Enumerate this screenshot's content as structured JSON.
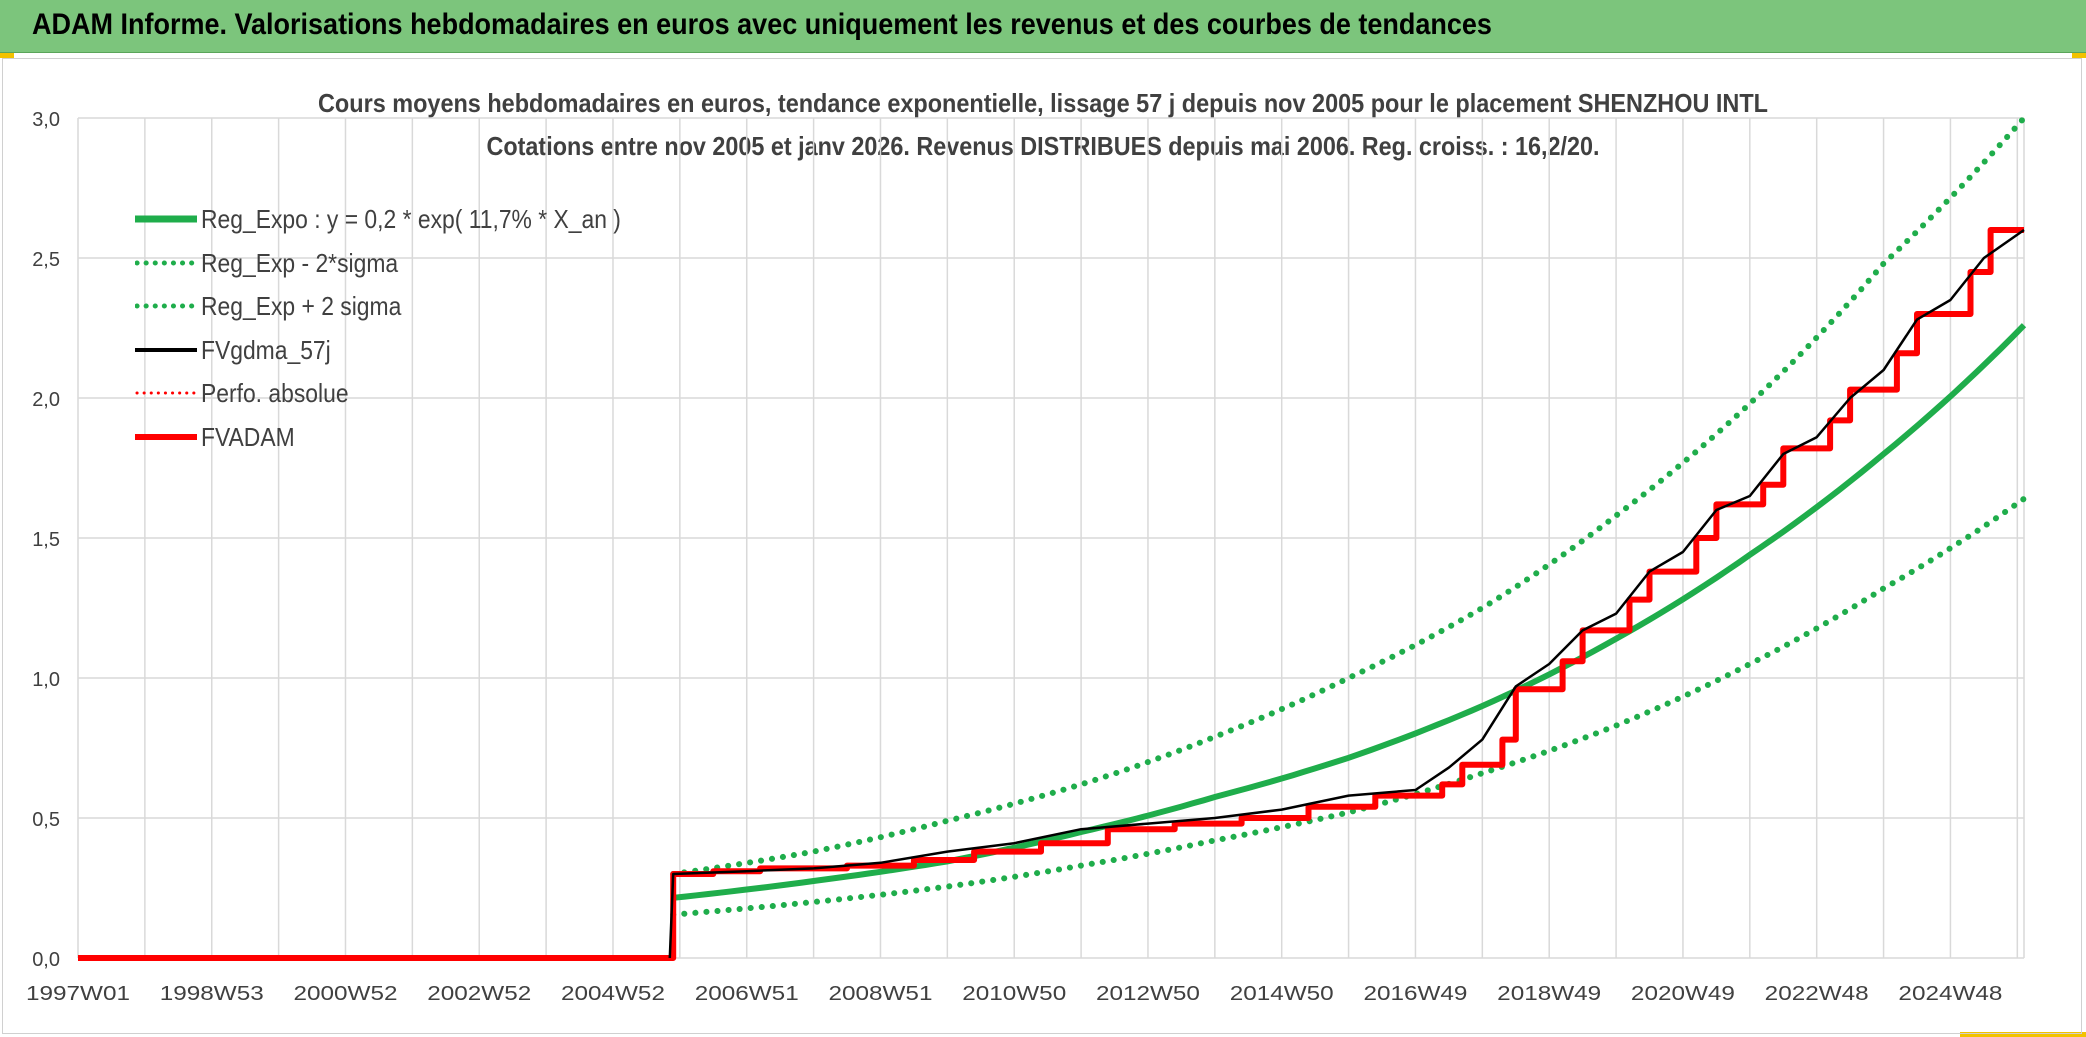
{
  "banner": {
    "title": "ADAM Informe. Valorisations hebdomadaires en euros avec uniquement les revenus et des courbes de tendances"
  },
  "colors": {
    "banner_bg": "#7cc57c",
    "accent_corner": "#f2c200",
    "reg_expo": "#1fad4b",
    "fvgdma": "#000000",
    "fvadam": "#ff0000",
    "grid": "#d9d9d9"
  },
  "chart_data": {
    "type": "line",
    "title": "Cours moyens hebdomadaires en euros, tendance exponentielle, lissage 57 j depuis nov 2005 pour le placement SHENZHOU INTL",
    "subtitle": "Cotations entre nov 2005 et janv 2026. Revenus DISTRIBUES depuis mai 2006. Reg. croiss. : 16,2/20.",
    "xlabel": "",
    "ylabel": "",
    "x_range_years": [
      1997.0,
      2026.1
    ],
    "ylim": [
      0,
      3
    ],
    "y_ticks": [
      "0,0",
      "0,5",
      "1,0",
      "1,5",
      "2,0",
      "2,5",
      "3,0"
    ],
    "x_ticks": [
      {
        "label": "1997W01",
        "year": 1997.0
      },
      {
        "label": "1998W53",
        "year": 1999.0
      },
      {
        "label": "2000W52",
        "year": 2001.0
      },
      {
        "label": "2002W52",
        "year": 2003.0
      },
      {
        "label": "2004W52",
        "year": 2005.0
      },
      {
        "label": "2006W51",
        "year": 2007.0
      },
      {
        "label": "2008W51",
        "year": 2009.0
      },
      {
        "label": "2010W50",
        "year": 2011.0
      },
      {
        "label": "2012W50",
        "year": 2013.0
      },
      {
        "label": "2014W50",
        "year": 2015.0
      },
      {
        "label": "2016W49",
        "year": 2017.0
      },
      {
        "label": "2018W49",
        "year": 2019.0
      },
      {
        "label": "2020W49",
        "year": 2021.0
      },
      {
        "label": "2022W48",
        "year": 2023.0
      },
      {
        "label": "2024W48",
        "year": 2025.0
      }
    ],
    "grid": true,
    "legend_position": "top-left",
    "series": [
      {
        "name": "Reg_Expo : y = 0,2 * exp( 11,7% *  X_an )",
        "style": "solid-thick",
        "color": "#1fad4b",
        "points": [
          [
            2005.9,
            0.215
          ],
          [
            2008.0,
            0.275
          ],
          [
            2010.0,
            0.345
          ],
          [
            2012.0,
            0.45
          ],
          [
            2014.0,
            0.575
          ],
          [
            2016.0,
            0.715
          ],
          [
            2018.0,
            0.9
          ],
          [
            2020.0,
            1.14
          ],
          [
            2022.0,
            1.44
          ],
          [
            2024.0,
            1.8
          ],
          [
            2026.1,
            2.26
          ]
        ]
      },
      {
        "name": "Reg_Exp - 2*sigma",
        "style": "dotted",
        "color": "#1fad4b",
        "points": [
          [
            2005.9,
            0.155
          ],
          [
            2008.0,
            0.2
          ],
          [
            2010.0,
            0.255
          ],
          [
            2012.0,
            0.33
          ],
          [
            2014.0,
            0.42
          ],
          [
            2016.0,
            0.52
          ],
          [
            2018.0,
            0.66
          ],
          [
            2020.0,
            0.83
          ],
          [
            2022.0,
            1.05
          ],
          [
            2024.0,
            1.32
          ],
          [
            2026.1,
            1.64
          ]
        ]
      },
      {
        "name": "Reg_Exp + 2 sigma",
        "style": "dotted",
        "color": "#1fad4b",
        "points": [
          [
            2005.9,
            0.3
          ],
          [
            2008.0,
            0.38
          ],
          [
            2010.0,
            0.49
          ],
          [
            2012.0,
            0.62
          ],
          [
            2014.0,
            0.79
          ],
          [
            2016.0,
            1.0
          ],
          [
            2018.0,
            1.25
          ],
          [
            2020.0,
            1.58
          ],
          [
            2022.0,
            1.98
          ],
          [
            2024.0,
            2.48
          ],
          [
            2026.1,
            3.0
          ]
        ]
      },
      {
        "name": "FVgdma_57j",
        "style": "solid-smoothed",
        "color": "#000000",
        "points": [
          [
            1997.0,
            0.0
          ],
          [
            2005.85,
            0.0
          ],
          [
            2005.9,
            0.3
          ],
          [
            2007.0,
            0.31
          ],
          [
            2008.0,
            0.32
          ],
          [
            2009.0,
            0.34
          ],
          [
            2010.0,
            0.38
          ],
          [
            2011.0,
            0.41
          ],
          [
            2012.0,
            0.46
          ],
          [
            2013.0,
            0.48
          ],
          [
            2014.0,
            0.5
          ],
          [
            2015.0,
            0.53
          ],
          [
            2016.0,
            0.58
          ],
          [
            2017.0,
            0.6
          ],
          [
            2017.5,
            0.68
          ],
          [
            2018.0,
            0.78
          ],
          [
            2018.5,
            0.97
          ],
          [
            2019.0,
            1.05
          ],
          [
            2019.5,
            1.17
          ],
          [
            2020.0,
            1.23
          ],
          [
            2020.5,
            1.38
          ],
          [
            2021.0,
            1.45
          ],
          [
            2021.5,
            1.6
          ],
          [
            2022.0,
            1.65
          ],
          [
            2022.5,
            1.8
          ],
          [
            2023.0,
            1.86
          ],
          [
            2023.5,
            2.0
          ],
          [
            2024.0,
            2.1
          ],
          [
            2024.5,
            2.28
          ],
          [
            2025.0,
            2.35
          ],
          [
            2025.5,
            2.5
          ],
          [
            2026.1,
            2.6
          ]
        ]
      },
      {
        "name": "Perfo. absolue",
        "style": "dotted",
        "color": "#ff0000",
        "points": [
          [
            1997.0,
            0.0
          ],
          [
            2005.85,
            0.0
          ],
          [
            2005.9,
            0.3
          ],
          [
            2026.1,
            2.6
          ]
        ]
      },
      {
        "name": "FVADAM",
        "style": "step-thick",
        "color": "#ff0000",
        "points": [
          [
            1997.0,
            0.0
          ],
          [
            2005.9,
            0.0
          ],
          [
            2005.9,
            0.3
          ],
          [
            2006.5,
            0.3
          ],
          [
            2006.5,
            0.31
          ],
          [
            2007.2,
            0.31
          ],
          [
            2007.2,
            0.32
          ],
          [
            2008.5,
            0.32
          ],
          [
            2008.5,
            0.33
          ],
          [
            2009.5,
            0.33
          ],
          [
            2009.5,
            0.35
          ],
          [
            2010.4,
            0.35
          ],
          [
            2010.4,
            0.38
          ],
          [
            2011.4,
            0.38
          ],
          [
            2011.4,
            0.41
          ],
          [
            2012.4,
            0.41
          ],
          [
            2012.4,
            0.46
          ],
          [
            2013.4,
            0.46
          ],
          [
            2013.4,
            0.48
          ],
          [
            2014.4,
            0.48
          ],
          [
            2014.4,
            0.5
          ],
          [
            2015.4,
            0.5
          ],
          [
            2015.4,
            0.54
          ],
          [
            2016.4,
            0.54
          ],
          [
            2016.4,
            0.58
          ],
          [
            2017.4,
            0.58
          ],
          [
            2017.4,
            0.62
          ],
          [
            2017.7,
            0.62
          ],
          [
            2017.7,
            0.69
          ],
          [
            2018.3,
            0.69
          ],
          [
            2018.3,
            0.78
          ],
          [
            2018.5,
            0.78
          ],
          [
            2018.5,
            0.96
          ],
          [
            2019.2,
            0.96
          ],
          [
            2019.2,
            1.06
          ],
          [
            2019.5,
            1.06
          ],
          [
            2019.5,
            1.17
          ],
          [
            2020.2,
            1.17
          ],
          [
            2020.2,
            1.28
          ],
          [
            2020.5,
            1.28
          ],
          [
            2020.5,
            1.38
          ],
          [
            2021.2,
            1.38
          ],
          [
            2021.2,
            1.5
          ],
          [
            2021.5,
            1.5
          ],
          [
            2021.5,
            1.62
          ],
          [
            2022.2,
            1.62
          ],
          [
            2022.2,
            1.69
          ],
          [
            2022.5,
            1.69
          ],
          [
            2022.5,
            1.82
          ],
          [
            2023.2,
            1.82
          ],
          [
            2023.2,
            1.92
          ],
          [
            2023.5,
            1.92
          ],
          [
            2023.5,
            2.03
          ],
          [
            2024.2,
            2.03
          ],
          [
            2024.2,
            2.16
          ],
          [
            2024.5,
            2.16
          ],
          [
            2024.5,
            2.3
          ],
          [
            2025.3,
            2.3
          ],
          [
            2025.3,
            2.45
          ],
          [
            2025.6,
            2.45
          ],
          [
            2025.6,
            2.6
          ],
          [
            2026.1,
            2.6
          ]
        ]
      }
    ]
  }
}
